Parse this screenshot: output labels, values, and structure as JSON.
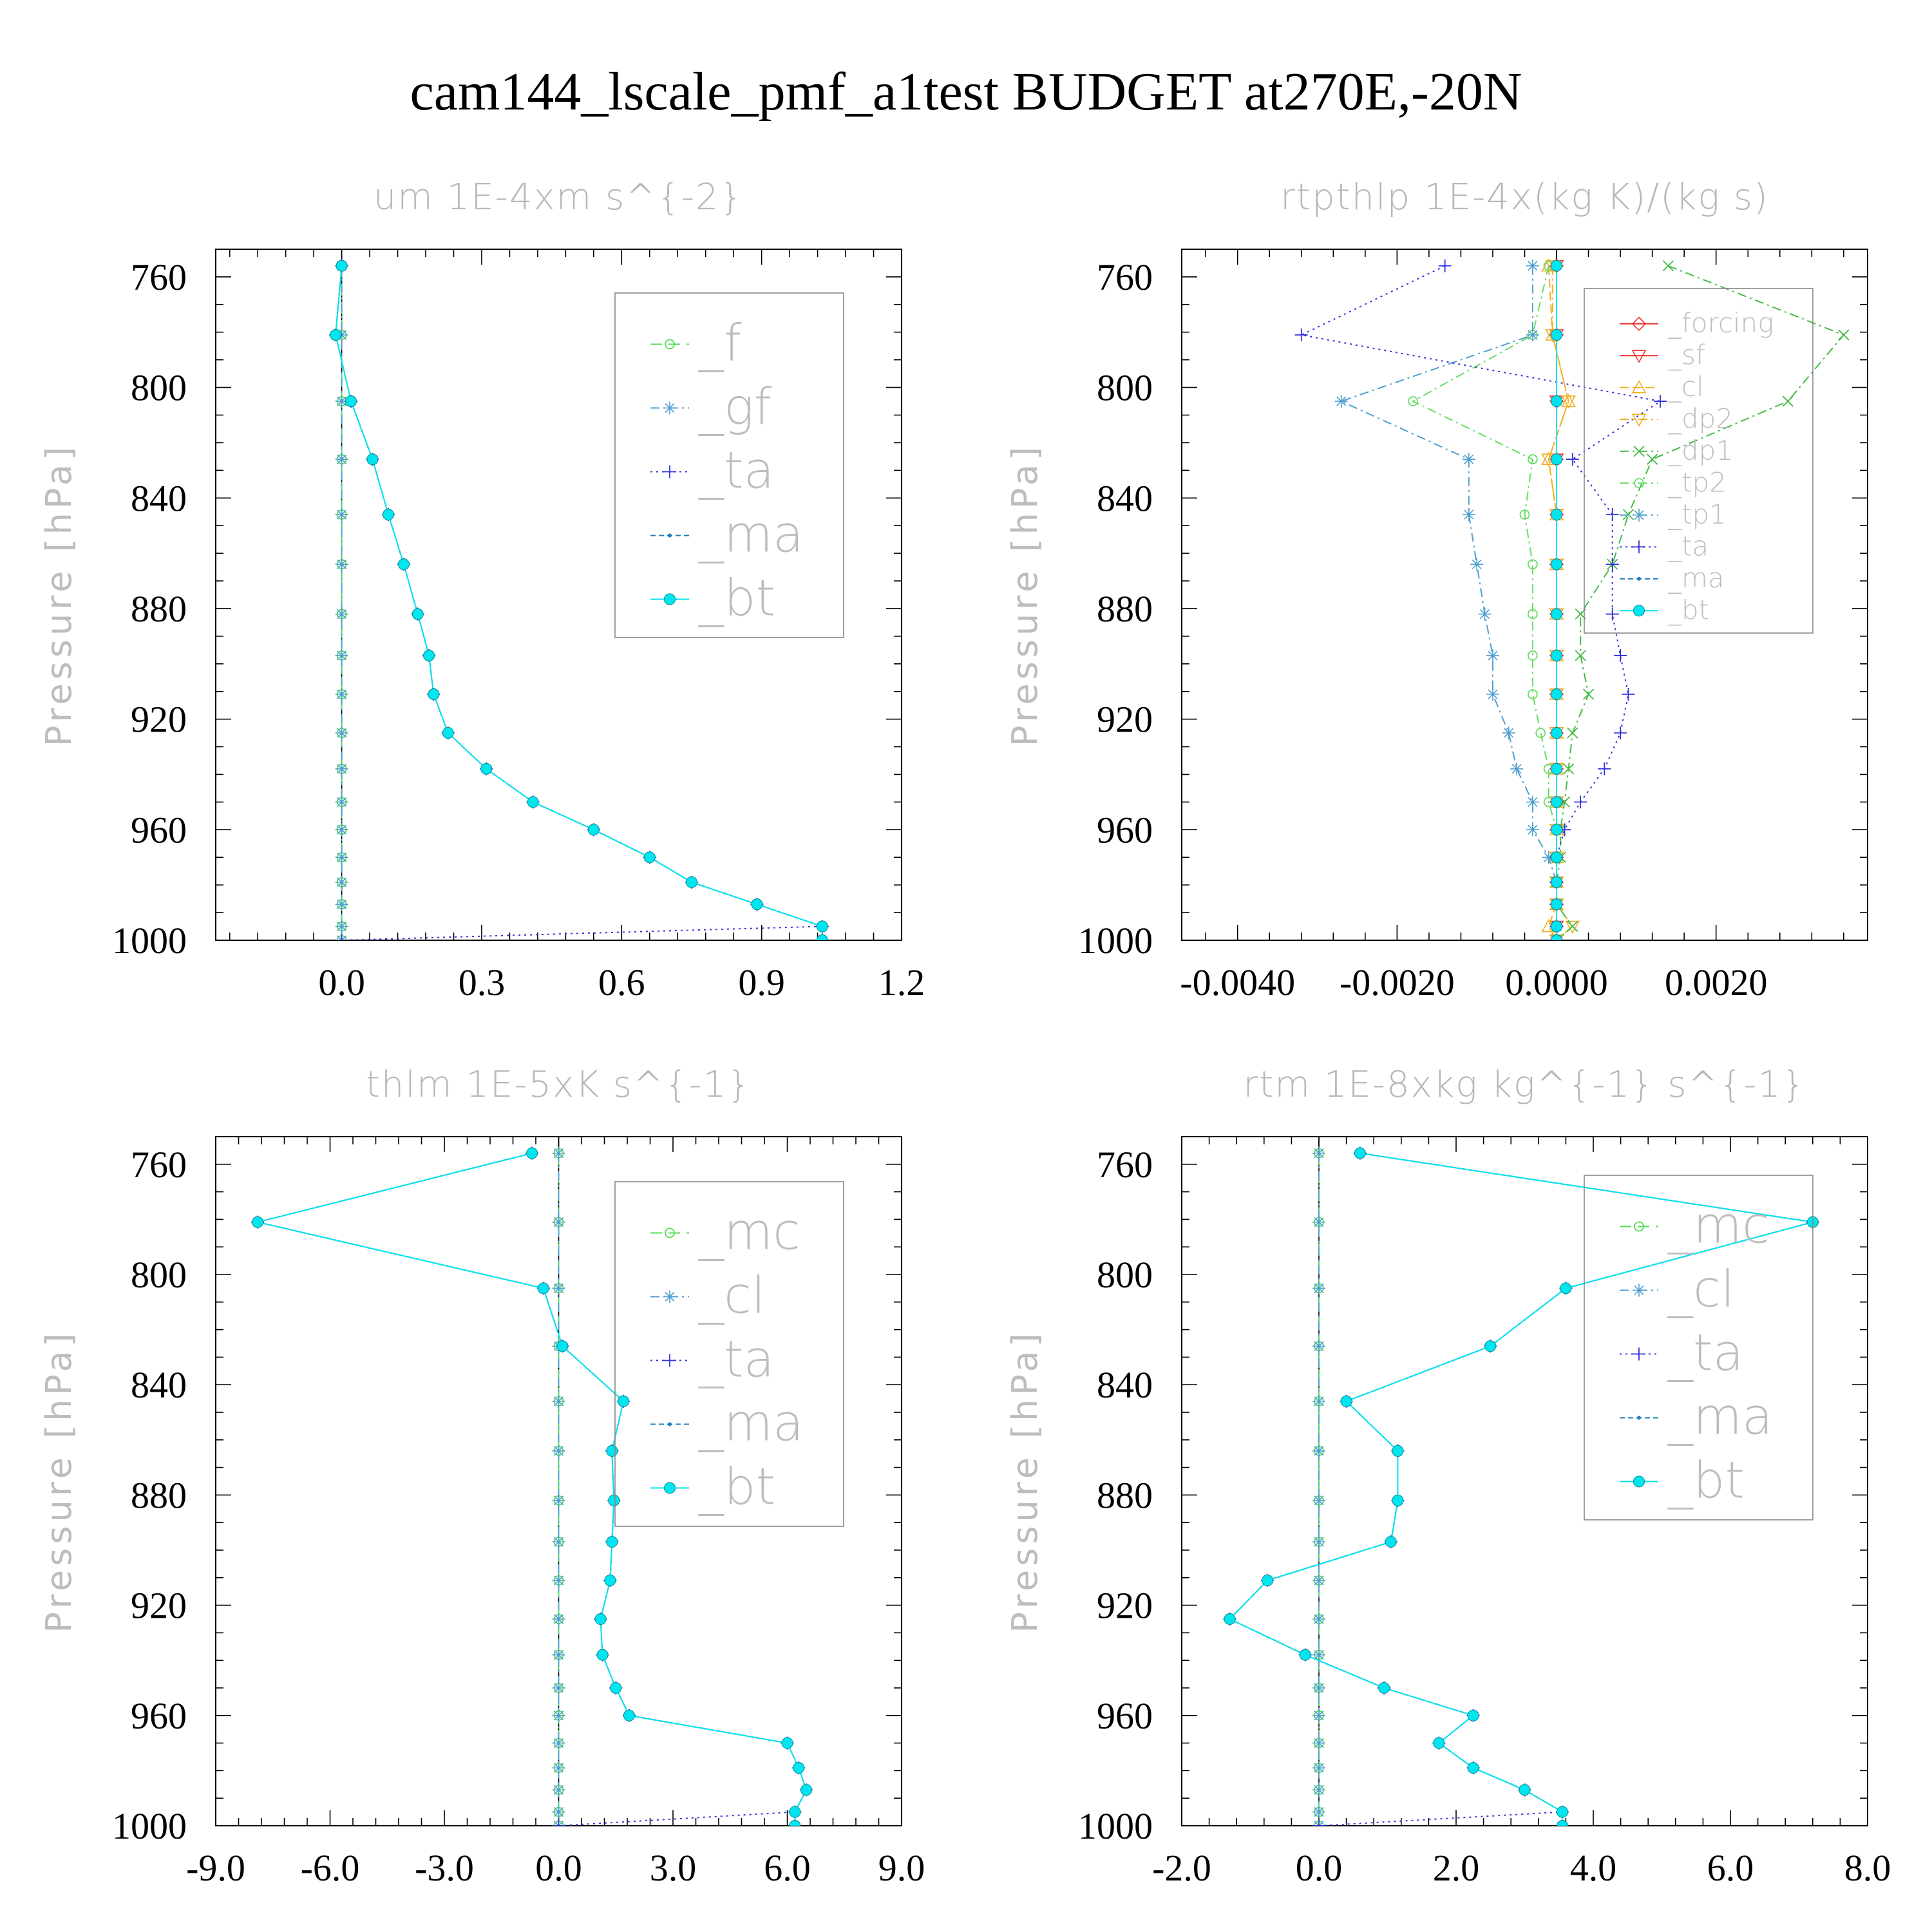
{
  "title": "cam144_lscale_pmf_a1test  BUDGET at270E,-20N",
  "colors": {
    "f": "#55dd55",
    "gf": "#4f9fd0",
    "ta": "#3333dd",
    "ma": "#1f7fbf",
    "bt": "#00e5ee",
    "forcing": "#ee3333",
    "sf": "#ee3333",
    "cl": "#f0b020",
    "dp2": "#f0b020",
    "dp1": "#44bb44",
    "tp2": "#66dd66",
    "tp1": "#4f9fd0",
    "mc": "#55dd55",
    "cl2": "#4f9fd0"
  },
  "chart_data": [
    {
      "type": "line",
      "title": "um  1E-4xm s^{-2}",
      "ylabel": "Pressure [hPa]",
      "xlim": [
        -0.27,
        1.2
      ],
      "ylim": [
        1000,
        750
      ],
      "xticks": [
        "0.0",
        "0.3",
        "0.6",
        "0.9",
        "1.2"
      ],
      "xtick_values": [
        0.0,
        0.3,
        0.6,
        0.9,
        1.2
      ],
      "yticks": [
        "760",
        "800",
        "840",
        "880",
        "920",
        "960",
        "1000"
      ],
      "ytick_values": [
        760,
        800,
        840,
        880,
        920,
        960,
        1000
      ],
      "pressure": [
        756,
        781,
        805,
        826,
        846,
        864,
        882,
        897,
        911,
        925,
        938,
        950,
        960,
        970,
        979,
        987,
        995,
        1000
      ],
      "legend_font": 78,
      "series": [
        {
          "name": "_f",
          "key": "f",
          "marker": "circle",
          "dash": "18,10",
          "values": [
            0,
            0,
            0,
            0,
            0,
            0,
            0,
            0,
            0,
            0,
            0,
            0,
            0,
            0,
            0,
            0,
            0,
            0
          ]
        },
        {
          "name": "_gf",
          "key": "gf",
          "marker": "star",
          "dash": "14,6,3,6",
          "values": [
            0,
            0,
            0,
            0,
            0,
            0,
            0,
            0,
            0,
            0,
            0,
            0,
            0,
            0,
            0,
            0,
            0,
            0
          ]
        },
        {
          "name": "_ta",
          "key": "ta",
          "marker": "plus",
          "dash": "3,6",
          "values": [
            0,
            -0.013,
            0.02,
            0.066,
            0.1,
            0.133,
            0.163,
            0.187,
            0.197,
            0.228,
            0.31,
            0.41,
            0.54,
            0.66,
            0.75,
            0.89,
            1.03,
            0.0
          ]
        },
        {
          "name": "_ma",
          "key": "ma",
          "marker": "dot",
          "dash": "8,5",
          "values": [
            0,
            -0.013,
            0.02,
            0.066,
            0.1,
            0.133,
            0.163,
            0.187,
            0.197,
            0.228,
            0.31,
            0.41,
            0.54,
            0.66,
            0.75,
            0.89,
            1.03,
            1.03
          ]
        },
        {
          "name": "_bt",
          "key": "bt",
          "marker": "disc",
          "dash": "",
          "values": [
            0,
            -0.013,
            0.02,
            0.066,
            0.1,
            0.133,
            0.163,
            0.187,
            0.197,
            0.228,
            0.31,
            0.41,
            0.54,
            0.66,
            0.75,
            0.89,
            1.03,
            1.03
          ]
        }
      ]
    },
    {
      "type": "line",
      "title": "rtpthlp  1E-4x(kg K)/(kg s)",
      "ylabel": "Pressure [hPa]",
      "xlim": [
        -0.0047,
        0.0039
      ],
      "ylim": [
        1000,
        750
      ],
      "xticks": [
        "-0.0040",
        "-0.0020",
        "0.0000",
        "0.0020"
      ],
      "xtick_values": [
        -0.004,
        -0.002,
        0.0,
        0.002
      ],
      "yticks": [
        "760",
        "800",
        "840",
        "880",
        "920",
        "960",
        "1000"
      ],
      "ytick_values": [
        760,
        800,
        840,
        880,
        920,
        960,
        1000
      ],
      "pressure": [
        756,
        781,
        805,
        826,
        846,
        864,
        882,
        897,
        911,
        925,
        938,
        950,
        960,
        970,
        979,
        987,
        995,
        1000
      ],
      "legend_font": 42,
      "series": [
        {
          "name": "_forcing",
          "key": "forcing",
          "marker": "diamond",
          "dash": "",
          "values": [
            0,
            0,
            0,
            0,
            0,
            0,
            0,
            0,
            0,
            0,
            0,
            0,
            0,
            0,
            0,
            0,
            0,
            0
          ]
        },
        {
          "name": "_sf",
          "key": "sf",
          "marker": "tridown",
          "dash": "",
          "values": [
            0,
            0,
            0,
            0,
            0,
            0,
            0,
            0,
            0,
            0,
            0,
            0,
            0,
            0,
            0,
            0,
            0,
            0
          ]
        },
        {
          "name": "_cl",
          "key": "cl",
          "marker": "triup",
          "dash": "14,6",
          "values": [
            -0.0001,
            -5e-05,
            0.00015,
            -0.0001,
            0,
            0,
            0,
            0,
            0,
            0,
            0,
            0,
            0,
            0,
            0,
            0,
            -0.0001,
            0
          ]
        },
        {
          "name": "_dp2",
          "key": "dp2",
          "marker": "tridown",
          "dash": "14,6,3,6",
          "values": [
            -5e-05,
            -5e-05,
            0.00015,
            -0.0001,
            0,
            0,
            0,
            0,
            0,
            0,
            0,
            0,
            0,
            0,
            0,
            0,
            0.0002,
            0
          ]
        },
        {
          "name": "_dp1",
          "key": "dp1",
          "marker": "x",
          "dash": "14,6,3,6",
          "values": [
            0.0014,
            0.0036,
            0.0029,
            0.0012,
            0.0009,
            0.0007,
            0.0003,
            0.0003,
            0.0004,
            0.0002,
            0.00015,
            0.0001,
            5e-05,
            5e-05,
            0,
            0,
            0.0002,
            0
          ]
        },
        {
          "name": "_tp2",
          "key": "tp2",
          "marker": "circle",
          "dash": "14,6,3,6",
          "values": [
            -0.0001,
            -0.0003,
            -0.0018,
            -0.0003,
            -0.0004,
            -0.0003,
            -0.0003,
            -0.0003,
            -0.0003,
            -0.0002,
            -0.0001,
            -0.0001,
            0,
            0,
            0,
            0,
            0,
            0
          ]
        },
        {
          "name": "_tp1",
          "key": "tp1",
          "marker": "star",
          "dash": "14,6,3,6",
          "values": [
            -0.0003,
            -0.0003,
            -0.0027,
            -0.0011,
            -0.0011,
            -0.001,
            -0.0009,
            -0.0008,
            -0.0008,
            -0.0006,
            -0.0005,
            -0.0003,
            -0.0003,
            -0.0001,
            0,
            0,
            0,
            0
          ]
        },
        {
          "name": "_ta",
          "key": "ta",
          "marker": "plus",
          "dash": "3,6",
          "values": [
            -0.0014,
            -0.0032,
            0.0013,
            0.0002,
            0.0007,
            0.0007,
            0.0007,
            0.0008,
            0.0009,
            0.0008,
            0.0006,
            0.0003,
            0.0001,
            0,
            0,
            0,
            0,
            0
          ]
        },
        {
          "name": "_ma",
          "key": "ma",
          "marker": "dot",
          "dash": "8,5",
          "values": [
            0,
            0,
            0,
            0,
            0,
            0,
            0,
            0,
            0,
            0,
            0,
            0,
            0,
            0,
            0,
            0,
            0,
            0
          ]
        },
        {
          "name": "_bt",
          "key": "bt",
          "marker": "disc",
          "dash": "",
          "values": [
            0,
            0,
            0,
            0,
            0,
            0,
            0,
            0,
            0,
            0,
            0,
            0,
            0,
            0,
            0,
            0,
            0,
            0
          ]
        }
      ]
    },
    {
      "type": "line",
      "title": "thlm  1E-5xK s^{-1}",
      "ylabel": "Pressure [hPa]",
      "xlim": [
        -9.0,
        9.0
      ],
      "ylim": [
        1000,
        750
      ],
      "xticks": [
        "-9.0",
        "-6.0",
        "-3.0",
        "0.0",
        "3.0",
        "6.0",
        "9.0"
      ],
      "xtick_values": [
        -9,
        -6,
        -3,
        0,
        3,
        6,
        9
      ],
      "yticks": [
        "760",
        "800",
        "840",
        "880",
        "920",
        "960",
        "1000"
      ],
      "ytick_values": [
        760,
        800,
        840,
        880,
        920,
        960,
        1000
      ],
      "pressure": [
        756,
        781,
        805,
        826,
        846,
        864,
        882,
        897,
        911,
        925,
        938,
        950,
        960,
        970,
        979,
        987,
        995,
        1000
      ],
      "legend_font": 78,
      "series": [
        {
          "name": "_mc",
          "key": "mc",
          "marker": "circle",
          "dash": "18,10",
          "values": [
            0,
            0,
            0,
            0,
            0,
            0,
            0,
            0,
            0,
            0,
            0,
            0,
            0,
            0,
            0,
            0,
            0,
            0
          ]
        },
        {
          "name": "_cl",
          "key": "cl2",
          "marker": "star",
          "dash": "14,6,3,6",
          "values": [
            0,
            0,
            0,
            0,
            0,
            0,
            0,
            0,
            0,
            0,
            0,
            0,
            0,
            0,
            0,
            0,
            0,
            0
          ]
        },
        {
          "name": "_ta",
          "key": "ta",
          "marker": "plus",
          "dash": "3,6",
          "values": [
            -0.7,
            -7.9,
            -0.4,
            0.1,
            1.7,
            1.4,
            1.45,
            1.4,
            1.35,
            1.1,
            1.15,
            1.5,
            1.85,
            6.0,
            6.3,
            6.5,
            6.2,
            0.0
          ]
        },
        {
          "name": "_ma",
          "key": "ma",
          "marker": "dot",
          "dash": "8,5",
          "values": [
            -0.7,
            -7.9,
            -0.4,
            0.1,
            1.7,
            1.4,
            1.45,
            1.4,
            1.35,
            1.1,
            1.15,
            1.5,
            1.85,
            6.0,
            6.3,
            6.5,
            6.2,
            6.2
          ]
        },
        {
          "name": "_bt",
          "key": "bt",
          "marker": "disc",
          "dash": "",
          "values": [
            -0.7,
            -7.9,
            -0.4,
            0.1,
            1.7,
            1.4,
            1.45,
            1.4,
            1.35,
            1.1,
            1.15,
            1.5,
            1.85,
            6.0,
            6.3,
            6.5,
            6.2,
            6.2
          ]
        }
      ]
    },
    {
      "type": "line",
      "title": "rtm  1E-8xkg kg^{-1} s^{-1}",
      "ylabel": "Pressure [hPa]",
      "xlim": [
        -2.0,
        8.0
      ],
      "ylim": [
        1000,
        750
      ],
      "xticks": [
        "-2.0",
        "0.0",
        "2.0",
        "4.0",
        "6.0",
        "8.0"
      ],
      "xtick_values": [
        -2,
        0,
        2,
        4,
        6,
        8
      ],
      "yticks": [
        "760",
        "800",
        "840",
        "880",
        "920",
        "960",
        "1000"
      ],
      "ytick_values": [
        760,
        800,
        840,
        880,
        920,
        960,
        1000
      ],
      "pressure": [
        756,
        781,
        805,
        826,
        846,
        864,
        882,
        897,
        911,
        925,
        938,
        950,
        960,
        970,
        979,
        987,
        995,
        1000
      ],
      "legend_font": 78,
      "series": [
        {
          "name": "_mc",
          "key": "mc",
          "marker": "circle",
          "dash": "18,10",
          "values": [
            0,
            0,
            0,
            0,
            0,
            0,
            0,
            0,
            0,
            0,
            0,
            0,
            0,
            0,
            0,
            0,
            0,
            0
          ]
        },
        {
          "name": "_cl",
          "key": "cl2",
          "marker": "star",
          "dash": "14,6,3,6",
          "values": [
            0,
            0,
            0,
            0,
            0,
            0,
            0,
            0,
            0,
            0,
            0,
            0,
            0,
            0,
            0,
            0,
            0,
            0
          ]
        },
        {
          "name": "_ta",
          "key": "ta",
          "marker": "plus",
          "dash": "3,6",
          "values": [
            0.6,
            7.2,
            3.6,
            2.5,
            0.4,
            1.15,
            1.15,
            1.05,
            -0.75,
            -1.3,
            -0.2,
            0.95,
            2.25,
            1.75,
            2.25,
            3.0,
            3.55,
            0.0
          ]
        },
        {
          "name": "_ma",
          "key": "ma",
          "marker": "dot",
          "dash": "8,5",
          "values": [
            0.6,
            7.2,
            3.6,
            2.5,
            0.4,
            1.15,
            1.15,
            1.05,
            -0.75,
            -1.3,
            -0.2,
            0.95,
            2.25,
            1.75,
            2.25,
            3.0,
            3.55,
            3.55
          ]
        },
        {
          "name": "_bt",
          "key": "bt",
          "marker": "disc",
          "dash": "",
          "values": [
            0.6,
            7.2,
            3.6,
            2.5,
            0.4,
            1.15,
            1.15,
            1.05,
            -0.75,
            -1.3,
            -0.2,
            0.95,
            2.25,
            1.75,
            2.25,
            3.0,
            3.55,
            3.55
          ]
        }
      ]
    }
  ]
}
